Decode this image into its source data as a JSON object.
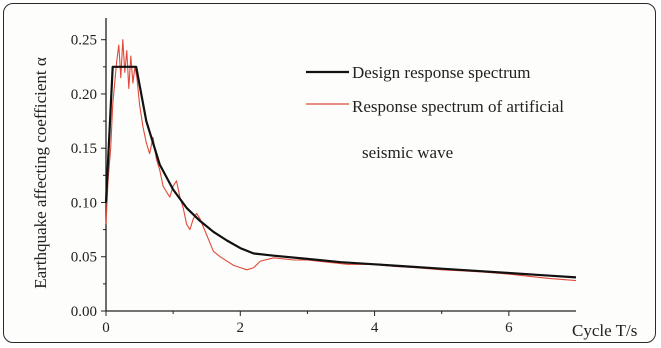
{
  "chart_data": {
    "type": "line",
    "xlabel": "Cycle T/s",
    "ylabel": "Earthquake affecting coefficient α",
    "xlim": [
      0,
      7
    ],
    "ylim": [
      0,
      0.27
    ],
    "xticks": [
      "0",
      "2",
      "4",
      "6"
    ],
    "yticks": [
      "0.00",
      "0.05",
      "0.10",
      "0.15",
      "0.20",
      "0.25"
    ],
    "legend_position": "top-right",
    "series": [
      {
        "name": "Design response spectrum",
        "color": "#111111",
        "x": [
          0,
          0.1,
          0.45,
          0.6,
          0.8,
          1.0,
          1.2,
          1.4,
          1.6,
          1.8,
          2.0,
          2.2,
          2.5,
          3.0,
          3.5,
          4.0,
          4.5,
          5.0,
          5.5,
          6.0,
          6.5,
          7.0
        ],
        "y": [
          0.1,
          0.225,
          0.225,
          0.175,
          0.135,
          0.112,
          0.095,
          0.083,
          0.073,
          0.065,
          0.058,
          0.053,
          0.051,
          0.048,
          0.045,
          0.043,
          0.041,
          0.039,
          0.037,
          0.035,
          0.033,
          0.031
        ]
      },
      {
        "name": "Response spectrum of artificial seismic wave",
        "color": "#e04a3a",
        "x": [
          0,
          0.03,
          0.07,
          0.1,
          0.13,
          0.16,
          0.19,
          0.22,
          0.25,
          0.28,
          0.31,
          0.34,
          0.37,
          0.4,
          0.43,
          0.46,
          0.5,
          0.55,
          0.6,
          0.65,
          0.7,
          0.75,
          0.8,
          0.85,
          0.9,
          0.95,
          1.0,
          1.05,
          1.1,
          1.15,
          1.2,
          1.25,
          1.3,
          1.35,
          1.4,
          1.5,
          1.6,
          1.7,
          1.8,
          1.9,
          2.0,
          2.1,
          2.2,
          2.3,
          2.5,
          2.8,
          3.0,
          3.3,
          3.6,
          4.0,
          4.3,
          4.6,
          5.0,
          5.3,
          5.6,
          6.0,
          6.3,
          6.6,
          7.0
        ],
        "y": [
          0.08,
          0.12,
          0.15,
          0.19,
          0.21,
          0.23,
          0.245,
          0.215,
          0.25,
          0.22,
          0.24,
          0.205,
          0.235,
          0.21,
          0.225,
          0.215,
          0.19,
          0.17,
          0.155,
          0.145,
          0.16,
          0.14,
          0.13,
          0.115,
          0.11,
          0.105,
          0.115,
          0.12,
          0.105,
          0.095,
          0.08,
          0.075,
          0.085,
          0.09,
          0.085,
          0.07,
          0.055,
          0.05,
          0.046,
          0.042,
          0.04,
          0.038,
          0.04,
          0.046,
          0.049,
          0.047,
          0.047,
          0.045,
          0.043,
          0.043,
          0.041,
          0.04,
          0.038,
          0.037,
          0.036,
          0.034,
          0.032,
          0.03,
          0.028
        ]
      }
    ]
  }
}
